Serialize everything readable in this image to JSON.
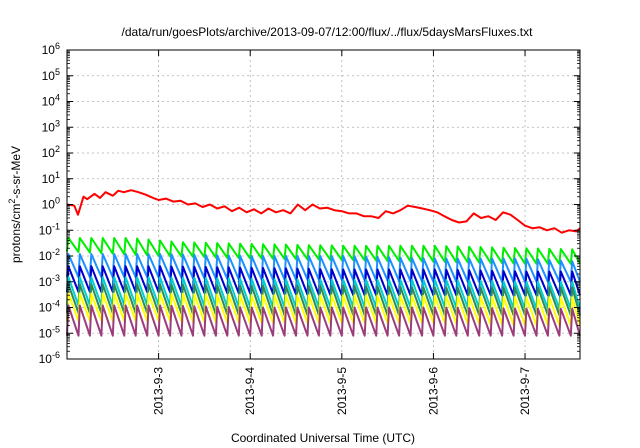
{
  "chart_data": {
    "type": "line",
    "title": "/data/run/goesPlots/archive/2013-09-07/12:00/flux/../flux/5daysMarsFluxes.txt",
    "xlabel": "Coordinated Universal Time (UTC)",
    "ylabel": {
      "prefix": "protons/cm",
      "sup": "2",
      "suffix": "-s-sr-MeV"
    },
    "yscale": "log",
    "ylim": [
      1e-06,
      1000000.0
    ],
    "xlim": [
      2.0,
      7.6
    ],
    "grid": true,
    "y_ticks": [
      {
        "exp": -6,
        "base": "10",
        "sup": "-6"
      },
      {
        "exp": -5,
        "base": "10",
        "sup": "-5"
      },
      {
        "exp": -4,
        "base": "10",
        "sup": "-4"
      },
      {
        "exp": -3,
        "base": "10",
        "sup": "-3"
      },
      {
        "exp": -2,
        "base": "10",
        "sup": "-2"
      },
      {
        "exp": -1,
        "base": "10",
        "sup": "-1"
      },
      {
        "exp": 0,
        "base": "10",
        "sup": "0"
      },
      {
        "exp": 1,
        "base": "10",
        "sup": "1"
      },
      {
        "exp": 2,
        "base": "10",
        "sup": "2"
      },
      {
        "exp": 3,
        "base": "10",
        "sup": "3"
      },
      {
        "exp": 4,
        "base": "10",
        "sup": "4"
      },
      {
        "exp": 5,
        "base": "10",
        "sup": "5"
      },
      {
        "exp": 6,
        "base": "10",
        "sup": "6"
      }
    ],
    "x_ticks": [
      {
        "day": 3,
        "label": "2013-9-3"
      },
      {
        "day": 4,
        "label": "2013-9-4"
      },
      {
        "day": 5,
        "label": "2013-9-5"
      },
      {
        "day": 6,
        "label": "2013-9-6"
      },
      {
        "day": 7,
        "label": "2013-9-7"
      }
    ],
    "series": [
      {
        "color": "#ff0000",
        "x": [
          2.0,
          2.08,
          2.12,
          2.18,
          2.22,
          2.3,
          2.36,
          2.42,
          2.5,
          2.56,
          2.62,
          2.7,
          2.78,
          2.86,
          2.94,
          3.0,
          3.08,
          3.16,
          3.24,
          3.32,
          3.4,
          3.48,
          3.56,
          3.64,
          3.72,
          3.8,
          3.88,
          3.96,
          4.04,
          4.12,
          4.2,
          4.28,
          4.36,
          4.44,
          4.52,
          4.6,
          4.68,
          4.76,
          4.84,
          4.92,
          5.0,
          5.08,
          5.16,
          5.24,
          5.32,
          5.4,
          5.48,
          5.56,
          5.64,
          5.72,
          5.8,
          5.88,
          5.96,
          6.04,
          6.12,
          6.2,
          6.28,
          6.36,
          6.44,
          6.52,
          6.6,
          6.68,
          6.76,
          6.84,
          6.92,
          7.0,
          7.08,
          7.16,
          7.24,
          7.32,
          7.4,
          7.48,
          7.56,
          7.6
        ],
        "y": [
          1.0,
          0.9,
          0.4,
          2.0,
          1.6,
          2.6,
          1.8,
          3.0,
          2.2,
          3.4,
          3.0,
          3.6,
          3.0,
          2.4,
          1.8,
          1.5,
          1.7,
          1.3,
          1.4,
          1.0,
          1.1,
          0.8,
          1.0,
          0.7,
          0.85,
          0.55,
          0.75,
          0.5,
          0.65,
          0.45,
          0.7,
          0.5,
          0.6,
          0.45,
          1.0,
          0.6,
          1.0,
          0.7,
          0.75,
          0.6,
          0.55,
          0.45,
          0.45,
          0.35,
          0.35,
          0.3,
          0.55,
          0.45,
          0.6,
          0.9,
          0.8,
          0.7,
          0.6,
          0.5,
          0.35,
          0.25,
          0.2,
          0.22,
          0.45,
          0.3,
          0.35,
          0.25,
          0.5,
          0.4,
          0.25,
          0.15,
          0.12,
          0.13,
          0.1,
          0.12,
          0.08,
          0.1,
          0.09,
          0.12
        ]
      },
      {
        "color": "#00ee00",
        "start": 2.0,
        "end": 7.6,
        "period": 0.125,
        "peak": [
          [
            2.0,
            0.05
          ],
          [
            2.7,
            0.05
          ],
          [
            3.2,
            0.035
          ],
          [
            3.9,
            0.03
          ],
          [
            5.0,
            0.025
          ],
          [
            6.0,
            0.025
          ],
          [
            7.0,
            0.02
          ],
          [
            7.6,
            0.018
          ]
        ],
        "trough": [
          [
            2.0,
            0.015
          ],
          [
            3.0,
            0.01
          ],
          [
            4.0,
            0.008
          ],
          [
            5.0,
            0.007
          ],
          [
            6.0,
            0.006
          ],
          [
            7.0,
            0.005
          ],
          [
            7.6,
            0.005
          ]
        ]
      },
      {
        "color": "#1e90ff",
        "start": 2.0,
        "end": 7.6,
        "period": 0.125,
        "peak": [
          [
            2.0,
            0.012
          ],
          [
            3.0,
            0.012
          ],
          [
            4.0,
            0.01
          ],
          [
            5.0,
            0.01
          ],
          [
            6.0,
            0.008
          ],
          [
            7.0,
            0.008
          ],
          [
            7.6,
            0.006
          ]
        ],
        "trough": [
          [
            2.0,
            0.0015
          ],
          [
            3.0,
            0.0015
          ],
          [
            4.0,
            0.0012
          ],
          [
            5.0,
            0.0012
          ],
          [
            6.0,
            0.001
          ],
          [
            7.0,
            0.001
          ],
          [
            7.6,
            0.001
          ]
        ]
      },
      {
        "color": "#0000cd",
        "start": 2.0,
        "end": 7.6,
        "period": 0.125,
        "peak": [
          [
            2.0,
            0.004
          ],
          [
            3.0,
            0.004
          ],
          [
            4.0,
            0.0035
          ],
          [
            5.0,
            0.003
          ],
          [
            6.0,
            0.003
          ],
          [
            7.0,
            0.0025
          ],
          [
            7.6,
            0.0025
          ]
        ],
        "trough": [
          [
            2.0,
            0.0004
          ],
          [
            3.0,
            0.0004
          ],
          [
            4.0,
            0.00035
          ],
          [
            5.0,
            0.0003
          ],
          [
            6.0,
            0.0003
          ],
          [
            7.0,
            0.0003
          ],
          [
            7.6,
            0.0003
          ]
        ]
      },
      {
        "color": "#00ced1",
        "start": 2.0,
        "end": 7.6,
        "period": 0.125,
        "peak": [
          [
            2.0,
            0.0015
          ],
          [
            3.0,
            0.0015
          ],
          [
            4.0,
            0.0013
          ],
          [
            5.0,
            0.0012
          ],
          [
            6.0,
            0.0012
          ],
          [
            7.0,
            0.001
          ],
          [
            7.6,
            0.001
          ]
        ],
        "trough": [
          [
            2.0,
            0.00012
          ],
          [
            3.0,
            0.00012
          ],
          [
            4.0,
            0.0001
          ],
          [
            5.0,
            0.0001
          ],
          [
            6.0,
            0.0001
          ],
          [
            7.0,
            9e-05
          ],
          [
            7.6,
            9e-05
          ]
        ]
      },
      {
        "color": "#2e8b57",
        "start": 2.0,
        "end": 7.6,
        "period": 0.125,
        "peak": [
          [
            2.0,
            0.0008
          ],
          [
            3.0,
            0.0008
          ],
          [
            4.0,
            0.0007
          ],
          [
            5.0,
            0.0007
          ],
          [
            6.0,
            0.0006
          ],
          [
            7.0,
            0.0006
          ],
          [
            7.6,
            0.0006
          ]
        ],
        "trough": [
          [
            2.0,
            6e-05
          ],
          [
            3.0,
            6e-05
          ],
          [
            4.0,
            5e-05
          ],
          [
            5.0,
            5e-05
          ],
          [
            6.0,
            5e-05
          ],
          [
            7.0,
            5e-05
          ],
          [
            7.6,
            5e-05
          ]
        ]
      },
      {
        "color": "#ffff00",
        "start": 2.0,
        "end": 7.6,
        "period": 0.125,
        "peak": [
          [
            2.0,
            0.00035
          ],
          [
            3.0,
            0.00035
          ],
          [
            4.0,
            0.0003
          ],
          [
            5.0,
            0.0003
          ],
          [
            6.0,
            0.00028
          ],
          [
            7.0,
            0.00025
          ],
          [
            7.6,
            0.00025
          ]
        ],
        "trough": [
          [
            2.0,
            3e-05
          ],
          [
            3.0,
            3e-05
          ],
          [
            4.0,
            2.5e-05
          ],
          [
            5.0,
            2.5e-05
          ],
          [
            6.0,
            2.5e-05
          ],
          [
            7.0,
            2e-05
          ],
          [
            7.6,
            2e-05
          ]
        ]
      },
      {
        "color": "#9b3d7b",
        "start": 2.0,
        "end": 7.6,
        "period": 0.125,
        "peak": [
          [
            2.0,
            0.00012
          ],
          [
            3.0,
            0.00012
          ],
          [
            4.0,
            0.0001
          ],
          [
            5.0,
            0.0001
          ],
          [
            6.0,
            0.0001
          ],
          [
            7.0,
            9e-05
          ],
          [
            7.6,
            9e-05
          ]
        ],
        "trough": [
          [
            2.0,
            8e-06
          ],
          [
            3.0,
            8e-06
          ],
          [
            4.0,
            8e-06
          ],
          [
            5.0,
            8e-06
          ],
          [
            6.0,
            8e-06
          ],
          [
            7.0,
            8e-06
          ],
          [
            7.6,
            8e-06
          ]
        ]
      }
    ]
  }
}
